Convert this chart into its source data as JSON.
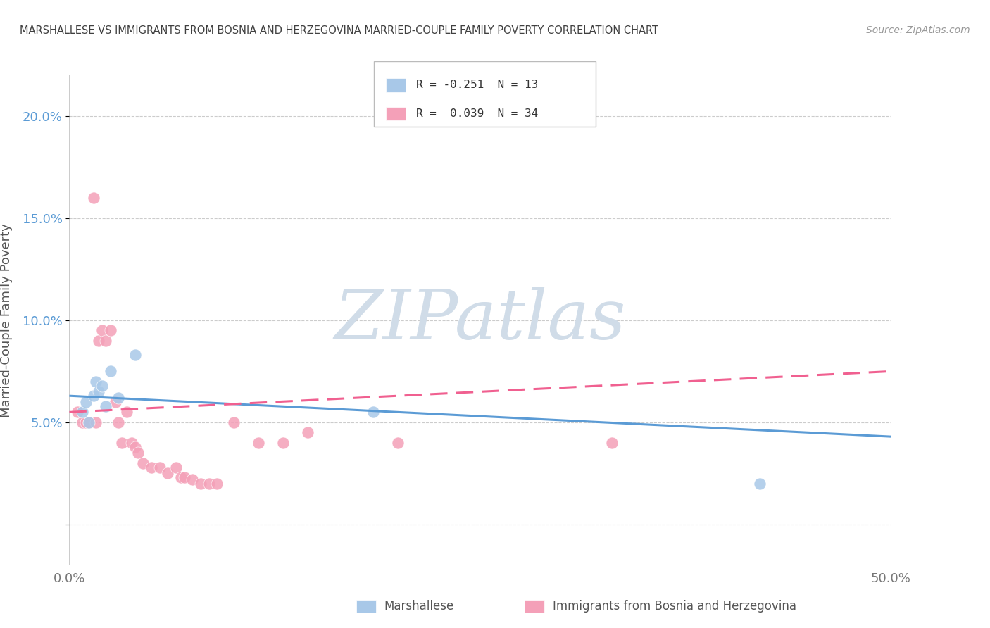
{
  "title": "MARSHALLESE VS IMMIGRANTS FROM BOSNIA AND HERZEGOVINA MARRIED-COUPLE FAMILY POVERTY CORRELATION CHART",
  "source": "Source: ZipAtlas.com",
  "ylabel": "Married-Couple Family Poverty",
  "watermark": "ZIPatlas",
  "xlim": [
    0,
    0.5
  ],
  "ylim": [
    -0.02,
    0.22
  ],
  "yticks": [
    0.0,
    0.05,
    0.1,
    0.15,
    0.2
  ],
  "ytick_labels": [
    "",
    "5.0%",
    "10.0%",
    "15.0%",
    "20.0%"
  ],
  "blue_scatter_x": [
    0.008,
    0.01,
    0.012,
    0.015,
    0.016,
    0.018,
    0.02,
    0.022,
    0.025,
    0.03,
    0.04,
    0.185,
    0.42
  ],
  "blue_scatter_y": [
    0.055,
    0.06,
    0.05,
    0.063,
    0.07,
    0.065,
    0.068,
    0.058,
    0.075,
    0.062,
    0.083,
    0.055,
    0.02
  ],
  "pink_scatter_x": [
    0.005,
    0.008,
    0.01,
    0.012,
    0.015,
    0.016,
    0.018,
    0.02,
    0.022,
    0.025,
    0.028,
    0.03,
    0.032,
    0.035,
    0.038,
    0.04,
    0.042,
    0.045,
    0.05,
    0.055,
    0.06,
    0.065,
    0.068,
    0.07,
    0.075,
    0.08,
    0.085,
    0.09,
    0.1,
    0.115,
    0.13,
    0.145,
    0.2,
    0.33
  ],
  "pink_scatter_y": [
    0.055,
    0.05,
    0.05,
    0.05,
    0.16,
    0.05,
    0.09,
    0.095,
    0.09,
    0.095,
    0.06,
    0.05,
    0.04,
    0.055,
    0.04,
    0.038,
    0.035,
    0.03,
    0.028,
    0.028,
    0.025,
    0.028,
    0.023,
    0.023,
    0.022,
    0.02,
    0.02,
    0.02,
    0.05,
    0.04,
    0.04,
    0.045,
    0.04,
    0.04
  ],
  "blue_line_x": [
    0.0,
    0.5
  ],
  "blue_line_y": [
    0.063,
    0.043
  ],
  "pink_line_x": [
    0.0,
    0.5
  ],
  "pink_line_y": [
    0.055,
    0.075
  ],
  "blue_color": "#a8c8e8",
  "pink_color": "#f4a0b8",
  "blue_line_color": "#5b9bd5",
  "pink_line_color": "#f06090",
  "background_color": "#ffffff",
  "grid_color": "#cccccc",
  "title_color": "#404040",
  "source_color": "#999999",
  "axis_label_color": "#555555",
  "tick_label_color_right": "#5b9bd5",
  "xtick_color": "#777777",
  "watermark_color": "#d0dce8",
  "watermark_fontsize": 72,
  "legend_entries": [
    {
      "color": "#a8c8e8",
      "text": "R = -0.251  N = 13"
    },
    {
      "color": "#f4a0b8",
      "text": "R =  0.039  N = 34"
    }
  ],
  "bottom_legend": [
    "Marshallese",
    "Immigrants from Bosnia and Herzegovina"
  ]
}
